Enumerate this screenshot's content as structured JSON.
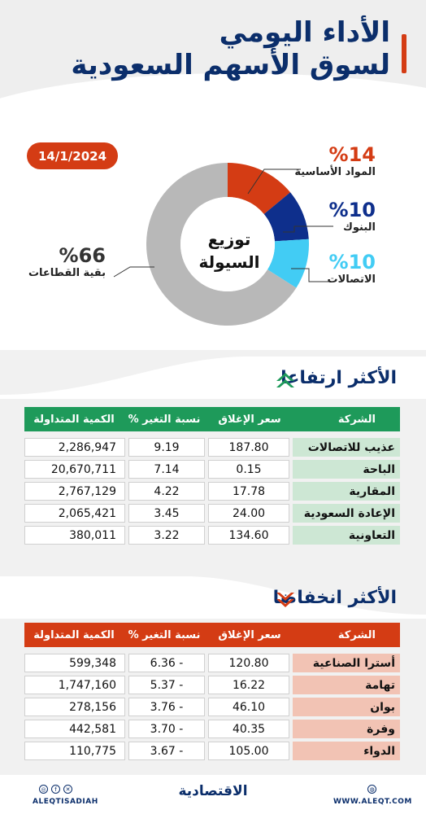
{
  "header": {
    "title_line1": "الأداء اليومي",
    "title_line2": "لسوق الأسهم السعودية",
    "date": "14/1/2024",
    "accent_color": "#d43c14",
    "title_color": "#0b2e6b"
  },
  "donut": {
    "center_line1": "توزيع",
    "center_line2": "السيولة",
    "sectors": [
      {
        "name": "المواد الأساسية",
        "pct_label": "%14",
        "value": 14,
        "color": "#d43c14"
      },
      {
        "name": "البنوك",
        "pct_label": "%10",
        "value": 10,
        "color": "#0e2f8c"
      },
      {
        "name": "الاتصالات",
        "pct_label": "%10",
        "value": 10,
        "color": "#42ccf4"
      },
      {
        "name": "بقية القطاعات",
        "pct_label": "%66",
        "value": 66,
        "color": "#b8b8b8"
      }
    ]
  },
  "gainers": {
    "title": "الأكثر ارتفاعا",
    "header_color": "#1e9a5a",
    "columns": {
      "name": "الشركة",
      "close": "سعر الإغلاق",
      "change": "نسبة التغير %",
      "volume": "الكمية المتداولة"
    },
    "row_name_bg": "#cde7d4",
    "rows": [
      {
        "name": "عذيب للاتصالات",
        "close": "187.80",
        "change": "9.19",
        "volume": "2,286,947"
      },
      {
        "name": "الباحة",
        "close": "0.15",
        "change": "7.14",
        "volume": "20,670,711"
      },
      {
        "name": "المقارية",
        "close": "17.78",
        "change": "4.22",
        "volume": "2,767,129"
      },
      {
        "name": "الإعادة السعودية",
        "close": "24.00",
        "change": "3.45",
        "volume": "2,065,421"
      },
      {
        "name": "التعاونية",
        "close": "134.60",
        "change": "3.22",
        "volume": "380,011"
      }
    ]
  },
  "losers": {
    "title": "الأكثر انخفاضا",
    "header_color": "#d43c14",
    "columns": {
      "name": "الشركة",
      "close": "سعر الإغلاق",
      "change": "نسبة التغير %",
      "volume": "الكمية المتداولة"
    },
    "row_name_bg": "#f2c3b4",
    "rows": [
      {
        "name": "أسترا الصناعية",
        "close": "120.80",
        "change": "6.36 -",
        "volume": "599,348"
      },
      {
        "name": "تهامة",
        "close": "16.22",
        "change": "5.37 -",
        "volume": "1,747,160"
      },
      {
        "name": "بوان",
        "close": "46.10",
        "change": "3.76 -",
        "volume": "278,156"
      },
      {
        "name": "وفرة",
        "close": "40.35",
        "change": "3.70 -",
        "volume": "442,581"
      },
      {
        "name": "الدواء",
        "close": "105.00",
        "change": "3.67 -",
        "volume": "110,775"
      }
    ]
  },
  "footer": {
    "handle": "ALEQTISADIAH",
    "logo": "الاقتصادية",
    "site": "WWW.ALEQT.COM",
    "social_icons": [
      "instagram-icon",
      "facebook-icon",
      "x-icon"
    ]
  }
}
